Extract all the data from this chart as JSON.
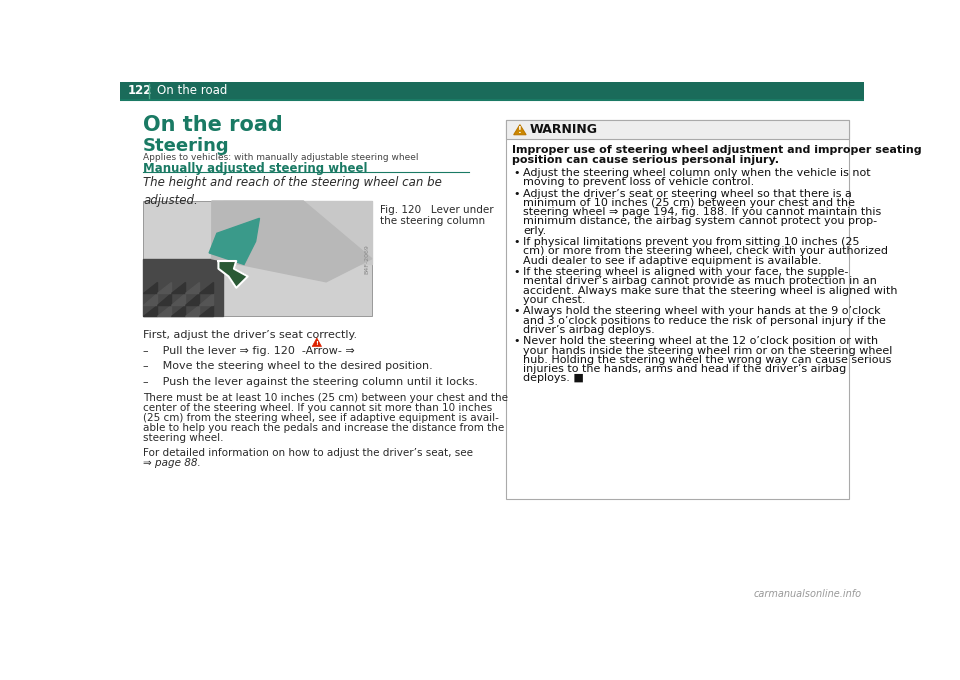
{
  "header_bg": "#1a6b5a",
  "header_text_color": "#ffffff",
  "header_page_num": "122",
  "header_title": "On the road",
  "section_title": "On the road",
  "section_title_color": "#1a7a64",
  "subsection_title": "Steering",
  "subsection_title_color": "#1a7a64",
  "applies_text": "Applies to vehicles: with manually adjustable steering wheel",
  "subhead": "Manually adjusted steering wheel",
  "subhead_color": "#1a7a64",
  "intro_text": "The height and reach of the steering wheel can be\nadjusted.",
  "fig_caption_line1": "Fig. 120   Lever under",
  "fig_caption_line2": "the steering column",
  "body_text1": "First, adjust the driver’s seat correctly.",
  "bullet1_text": "–    Pull the lever ⇒ fig. 120  -Arrow- ⇒",
  "bullet2": "–    Move the steering wheel to the desired position.",
  "bullet3": "–    Push the lever against the steering column until it locks.",
  "para1_lines": [
    "There must be at least 10 inches (25 cm) between your chest and the",
    "center of the steering wheel. If you cannot sit more than 10 inches",
    "(25 cm) from the steering wheel, see if adaptive equipment is avail-",
    "able to help you reach the pedals and increase the distance from the",
    "steering wheel."
  ],
  "para2_lines": [
    "For detailed information on how to adjust the driver’s seat, see",
    "⇒ page 88."
  ],
  "warning_title": "WARNING",
  "warning_intro_lines": [
    "Improper use of steering wheel adjustment and improper seating",
    "position can cause serious personal injury."
  ],
  "warning_bullets": [
    [
      "Adjust the steering wheel column only when the vehicle is not",
      "moving to prevent loss of vehicle control."
    ],
    [
      "Adjust the driver’s seat or steering wheel so that there is a",
      "minimum of 10 inches (25 cm) between your chest and the",
      "steering wheel ⇒ page 194, fig. 188. If you cannot maintain this",
      "minimum distance, the airbag system cannot protect you prop-",
      "erly."
    ],
    [
      "If physical limitations prevent you from sitting 10 inches (25",
      "cm) or more from the steering wheel, check with your authorized",
      "Audi dealer to see if adaptive equipment is available."
    ],
    [
      "If the steering wheel is aligned with your face, the supple-",
      "mental driver’s airbag cannot provide as much protection in an",
      "accident. Always make sure that the steering wheel is aligned with",
      "your chest."
    ],
    [
      "Always hold the steering wheel with your hands at the 9 o’clock",
      "and 3 o’clock positions to reduce the risk of personal injury if the",
      "driver’s airbag deploys."
    ],
    [
      "Never hold the steering wheel at the 12 o’clock position or with",
      "your hands inside the steering wheel rim or on the steering wheel",
      "hub. Holding the steering wheel the wrong way can cause serious",
      "injuries to the hands, arms and head if the driver’s airbag",
      "deploys. ■"
    ]
  ],
  "bg_color": "#ffffff",
  "text_color": "#2a2a2a",
  "bold_text_color": "#111111",
  "body_font_size": 8.0,
  "warning_font_size": 8.0
}
